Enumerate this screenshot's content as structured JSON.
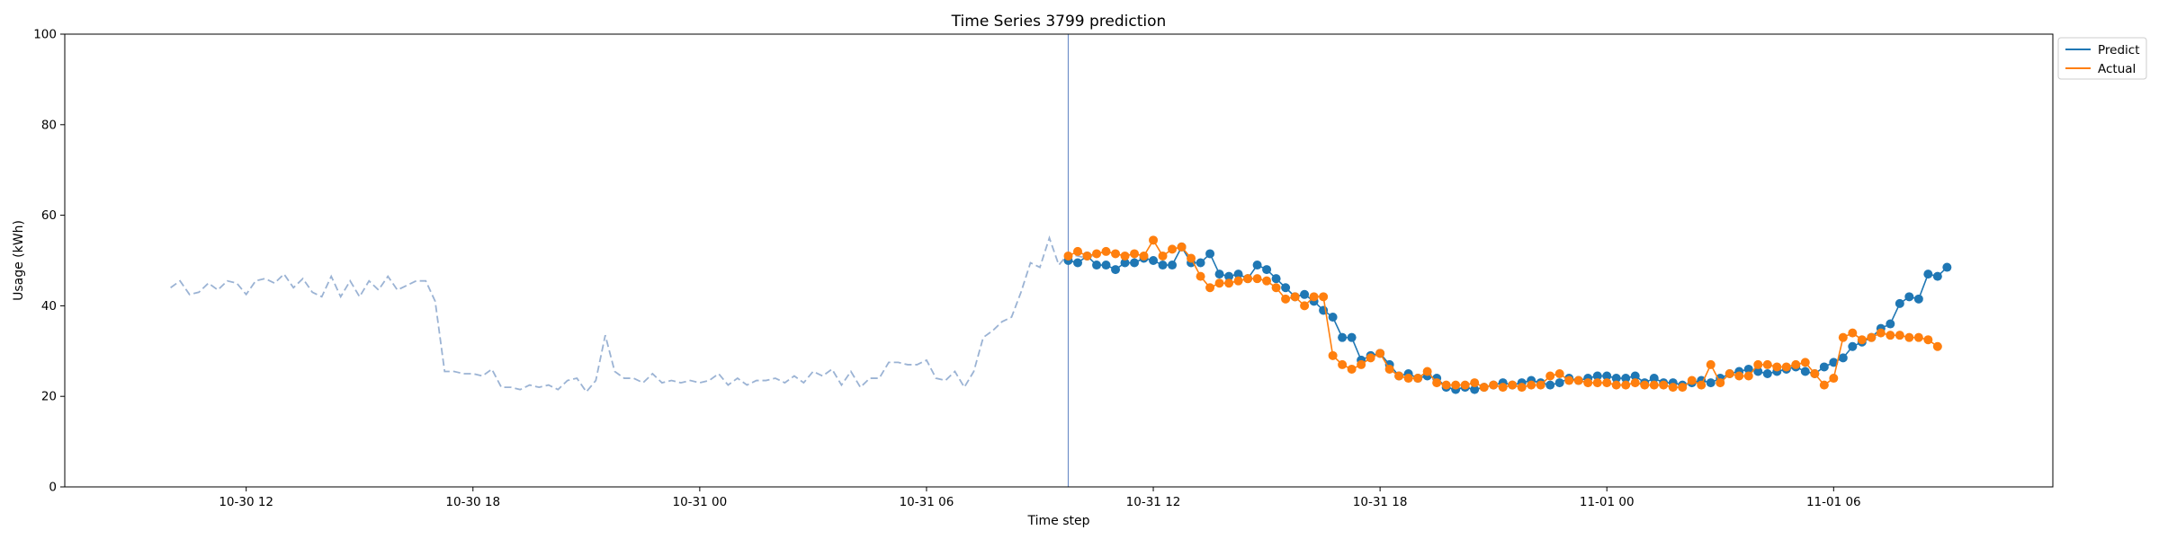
{
  "chart_data": {
    "type": "line",
    "title": "Time Series 3799 prediction",
    "xlabel": "Time step",
    "ylabel": "Usage (kWh)",
    "ylim": [
      0,
      100
    ],
    "yticks": [
      0,
      20,
      40,
      60,
      80,
      100
    ],
    "xlim": [
      "2024-10-30 07:12",
      "2024-11-01 11:48"
    ],
    "xtick_positions": [
      "2024-10-30 12:00",
      "2024-10-30 18:00",
      "2024-10-31 00:00",
      "2024-10-31 06:00",
      "2024-10-31 12:00",
      "2024-10-31 18:00",
      "2024-11-01 00:00",
      "2024-11-01 06:00"
    ],
    "xtick_labels": [
      "10-30 12",
      "10-30 18",
      "10-31 00",
      "10-31 06",
      "10-31 12",
      "10-31 18",
      "11-01 00",
      "11-01 06"
    ],
    "vline": "2024-10-31 09:45",
    "grid": false,
    "legend": {
      "position": "upper-right-outside",
      "entries": [
        "Predict",
        "Actual"
      ]
    },
    "history": {
      "color": "#9bb3d4",
      "style": "dashed",
      "start": "2024-10-30 10:00",
      "interval_minutes": 15,
      "values": [
        44,
        45.5,
        42.5,
        43,
        45,
        43.5,
        45.5,
        45,
        42.5,
        45.5,
        46,
        45,
        47,
        44,
        46,
        43,
        42,
        46.5,
        42,
        45.5,
        42,
        45.5,
        43.5,
        46.5,
        43.5,
        44.5,
        45.5,
        45.5,
        41,
        25.5,
        25.5,
        25,
        25,
        24.5,
        26,
        22,
        22,
        21.5,
        22.5,
        22,
        22.5,
        21.5,
        23.5,
        24,
        21,
        23.5,
        33.5,
        25.5,
        24,
        24,
        23,
        25,
        23,
        23.5,
        23,
        23.5,
        23,
        23.5,
        25,
        22.5,
        24,
        22.5,
        23.5,
        23.5,
        24,
        23,
        24.5,
        23,
        25.5,
        24.5,
        26,
        22.5,
        25.5,
        22,
        24,
        24,
        27.5,
        27.5,
        27,
        27,
        28,
        24,
        23.5,
        25.5,
        22,
        25.5,
        33,
        34.5,
        36.5,
        37.5,
        43,
        49.5,
        48.5,
        55,
        49,
        51.5,
        51,
        50.5,
        51.5
      ]
    },
    "series": [
      {
        "name": "Predict",
        "color": "#1f77b4",
        "start": "2024-10-31 09:45",
        "interval_minutes": 15,
        "values": [
          50,
          49.5,
          51,
          49,
          49,
          48,
          49.5,
          49.5,
          50.5,
          50,
          49,
          49,
          53,
          49.5,
          49.5,
          51.5,
          47,
          46.5,
          47,
          46,
          49,
          48,
          46,
          44,
          42,
          42.5,
          41,
          39,
          37.5,
          33,
          33,
          28,
          29,
          29.5,
          27,
          24.5,
          25,
          24,
          24.5,
          24,
          22,
          21.5,
          22,
          21.5,
          22,
          22.5,
          23,
          22.5,
          23,
          23.5,
          23,
          22.5,
          23,
          24,
          23.5,
          24,
          24.5,
          24.5,
          24,
          24,
          24.5,
          23,
          24,
          23,
          23,
          22.5,
          23,
          23.5,
          23,
          24,
          25,
          25.5,
          26,
          25.5,
          25,
          25.5,
          26,
          26.5,
          25.5,
          25,
          26.5,
          27.5,
          28.5,
          31,
          32,
          33,
          35,
          36,
          40.5,
          42,
          41.5,
          47,
          46.5,
          48.5
        ]
      },
      {
        "name": "Actual",
        "color": "#ff7f0e",
        "start": "2024-10-31 09:45",
        "interval_minutes": 15,
        "values": [
          51,
          52,
          51,
          51.5,
          52,
          51.5,
          51,
          51.5,
          51,
          54.5,
          51,
          52.5,
          53,
          50.5,
          46.5,
          44,
          45,
          45,
          45.5,
          46,
          46,
          45.5,
          44,
          41.5,
          42,
          40,
          42,
          42,
          29,
          27,
          26,
          27,
          28.5,
          29.5,
          26,
          24.5,
          24,
          24,
          25.5,
          23,
          22.5,
          22.5,
          22.5,
          23,
          22,
          22.5,
          22,
          22.5,
          22,
          22.5,
          22.5,
          24.5,
          25,
          23.5,
          23.5,
          23,
          23,
          23,
          22.5,
          22.5,
          23,
          22.5,
          22.5,
          22.5,
          22,
          22,
          23.5,
          22.5,
          27,
          23,
          25,
          24.5,
          24.5,
          27,
          27,
          26.5,
          26.5,
          27,
          27.5,
          25,
          22.5,
          24,
          33,
          34,
          32.5,
          33,
          34,
          33.5,
          33.5,
          33,
          33,
          32.5,
          31
        ]
      }
    ]
  }
}
